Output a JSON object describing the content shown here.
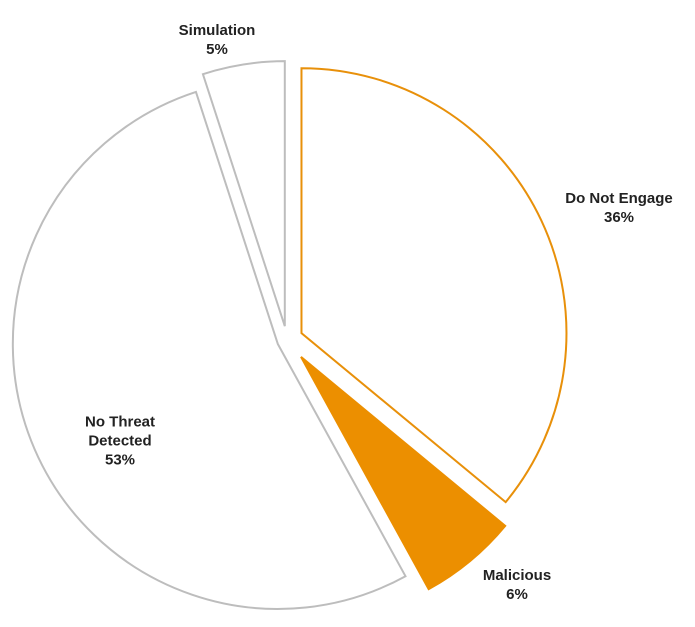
{
  "chart_data": {
    "type": "pie",
    "title": "",
    "slices": [
      {
        "label": "Do Not Engage",
        "value": 36,
        "value_label": "36%",
        "style": "outline",
        "color": "#E8900A"
      },
      {
        "label": "Malicious",
        "value": 6,
        "value_label": "6%",
        "style": "filled",
        "color": "#EC8F00"
      },
      {
        "label": "No Threat Detected",
        "value": 53,
        "value_label": "53%",
        "style": "outline",
        "color": "#BDBDBD"
      },
      {
        "label": "Simulation",
        "value": 5,
        "value_label": "5%",
        "style": "outline",
        "color": "#BDBDBD"
      }
    ],
    "start_angle": "12 o'clock",
    "direction": "clockwise",
    "exploded": true,
    "legend": "none"
  }
}
